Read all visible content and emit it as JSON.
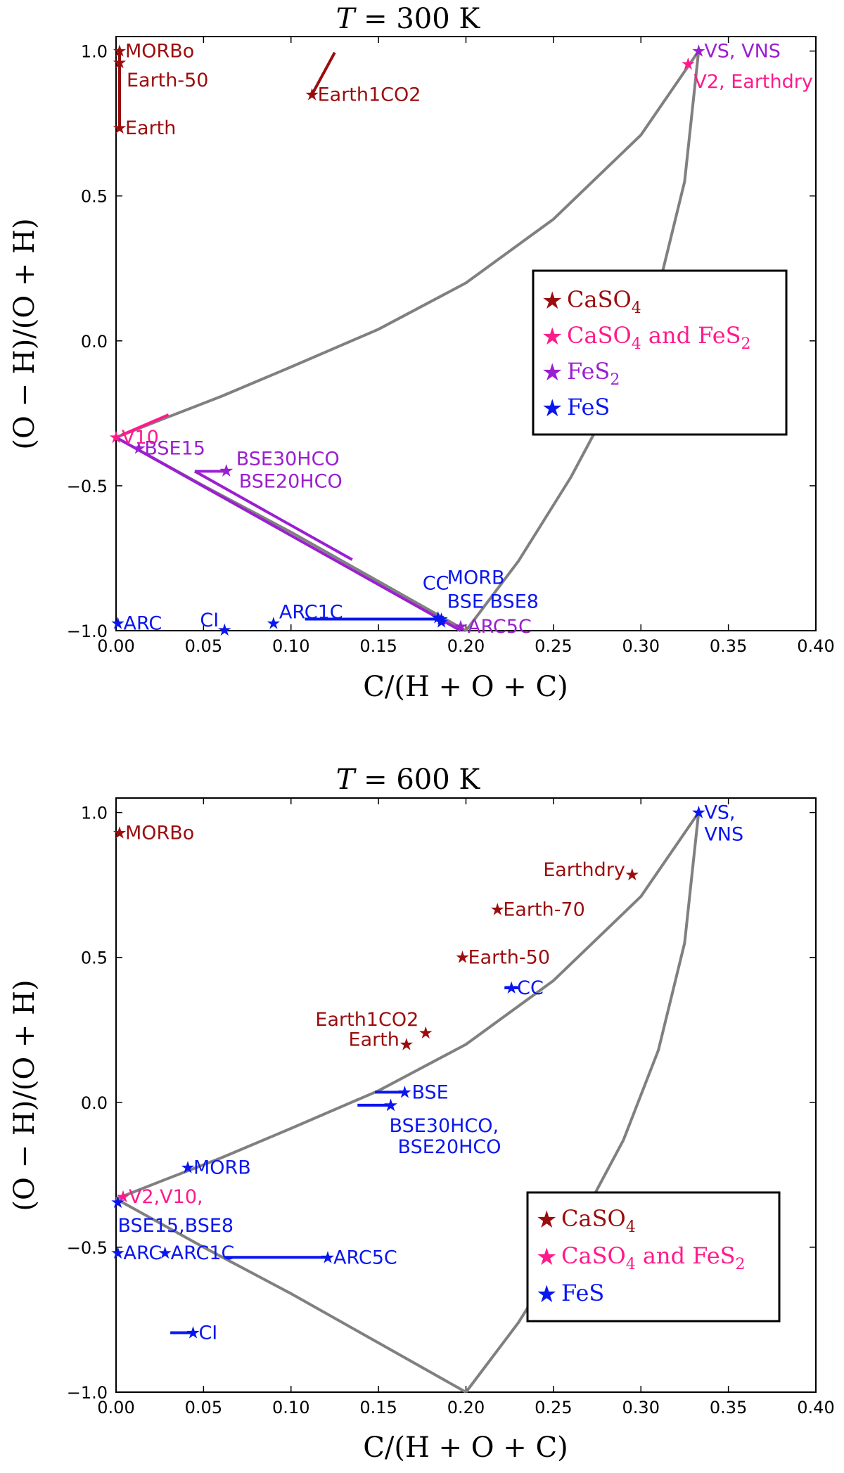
{
  "chart_data": [
    {
      "type": "scatter",
      "title": "T = 300 K",
      "title_var": "T",
      "title_rest": " = 300 K",
      "xlabel": "C/(H + O + C)",
      "ylabel": "(O − H)/(O + H)",
      "xlim": [
        0.0,
        0.4
      ],
      "ylim": [
        -1.0,
        1.05
      ],
      "xticks": [
        0.0,
        0.05,
        0.1,
        0.15,
        0.2,
        0.25,
        0.3,
        0.35,
        0.4
      ],
      "xtick_labels": [
        "0.00",
        "0.05",
        "0.10",
        "0.15",
        "0.20",
        "0.25",
        "0.30",
        "0.35",
        "0.40"
      ],
      "yticks": [
        -1.0,
        -0.5,
        0.0,
        0.5,
        1.0
      ],
      "ytick_labels": [
        "−1.0",
        "−0.5",
        "0.0",
        "0.5",
        "1.0"
      ],
      "legend": {
        "position": "right",
        "entries": [
          {
            "label": "CaSO",
            "sub": "4",
            "after": "",
            "sub2": "",
            "color": "#9b0d0d"
          },
          {
            "label": "CaSO",
            "sub": "4",
            "after": " and FeS",
            "sub2": "2",
            "color": "#ff1a8c"
          },
          {
            "label": "FeS",
            "sub": "2",
            "after": "",
            "sub2": "",
            "color": "#9b1fd0"
          },
          {
            "label": "FeS",
            "sub": "",
            "after": "",
            "sub2": "",
            "color": "#0a16f0"
          }
        ]
      },
      "curves": [
        {
          "name": "upper-boundary",
          "color": "#808080",
          "points": [
            [
              0.0,
              -0.333
            ],
            [
              0.03,
              -0.262
            ],
            [
              0.06,
              -0.192
            ],
            [
              0.1,
              -0.09
            ],
            [
              0.15,
              0.04
            ],
            [
              0.2,
              0.2
            ],
            [
              0.25,
              0.42
            ],
            [
              0.3,
              0.71
            ],
            [
              0.333,
              1.0
            ]
          ]
        },
        {
          "name": "lower-boundary",
          "color": "#808080",
          "points": [
            [
              0.0,
              -0.333
            ],
            [
              0.05,
              -0.5
            ],
            [
              0.1,
              -0.66
            ],
            [
              0.15,
              -0.83
            ],
            [
              0.2,
              -1.0
            ]
          ]
        },
        {
          "name": "right-boundary",
          "color": "#808080",
          "points": [
            [
              0.2,
              -1.0
            ],
            [
              0.23,
              -0.76
            ],
            [
              0.26,
              -0.47
            ],
            [
              0.29,
              -0.13
            ],
            [
              0.31,
              0.18
            ],
            [
              0.325,
              0.55
            ],
            [
              0.333,
              1.0
            ]
          ]
        }
      ],
      "segments": [
        {
          "color": "#9b0d0d",
          "points": [
            [
              0.002,
              0.735
            ],
            [
              0.002,
              1.0
            ]
          ]
        },
        {
          "color": "#9b0d0d",
          "points": [
            [
              0.112,
              0.85
            ],
            [
              0.125,
              0.995
            ]
          ]
        },
        {
          "color": "#9b1fd0",
          "points": [
            [
              0.0,
              -0.333
            ],
            [
              0.197,
              -1.0
            ]
          ]
        },
        {
          "color": "#9b1fd0",
          "points": [
            [
              0.045,
              -0.45
            ],
            [
              0.135,
              -0.755
            ]
          ]
        },
        {
          "color": "#9b1fd0",
          "points": [
            [
              0.045,
              -0.45
            ],
            [
              0.062,
              -0.45
            ]
          ]
        },
        {
          "color": "#ff1a8c",
          "points": [
            [
              0.003,
              -0.325
            ],
            [
              0.03,
              -0.255
            ]
          ]
        },
        {
          "color": "#0a16f0",
          "points": [
            [
              0.108,
              -0.96
            ],
            [
              0.185,
              -0.96
            ]
          ]
        }
      ],
      "points": [
        {
          "label": "MORBo",
          "x": 0.002,
          "y": 1.0,
          "color": "#9b0d0d"
        },
        {
          "label": "Earth-50",
          "x": 0.002,
          "y": 0.96,
          "color": "#9b0d0d"
        },
        {
          "label": "Earth",
          "x": 0.002,
          "y": 0.735,
          "color": "#9b0d0d"
        },
        {
          "label": "Earth1CO2",
          "x": 0.112,
          "y": 0.85,
          "color": "#9b0d0d"
        },
        {
          "label": "VS, VNS",
          "x": 0.333,
          "y": 1.0,
          "color": "#9b1fd0"
        },
        {
          "label": "V2, Earthdry",
          "x": 0.327,
          "y": 0.955,
          "color": "#ff1a8c"
        },
        {
          "label": "V10",
          "x": 0.0,
          "y": -0.333,
          "color": "#ff1a8c"
        },
        {
          "label": "BSE15",
          "x": 0.013,
          "y": -0.37,
          "color": "#9b1fd0"
        },
        {
          "label": "BSE30HCO",
          "x": 0.063,
          "y": -0.448,
          "color": "#9b1fd0"
        },
        {
          "label": "BSE20HCO",
          "x": 0.063,
          "y": -0.448,
          "color": "#9b1fd0"
        },
        {
          "label": "ARC5C",
          "x": 0.197,
          "y": -0.985,
          "color": "#9b1fd0"
        },
        {
          "label": "ARC",
          "x": 0.001,
          "y": -0.975,
          "color": "#0a16f0"
        },
        {
          "label": "CI",
          "x": 0.062,
          "y": -0.998,
          "color": "#0a16f0"
        },
        {
          "label": "ARC1C",
          "x": 0.09,
          "y": -0.975,
          "color": "#0a16f0"
        },
        {
          "label": "CC",
          "x": 0.184,
          "y": -0.955,
          "color": "#0a16f0"
        },
        {
          "label": "MORB",
          "x": 0.186,
          "y": -0.96,
          "color": "#0a16f0"
        },
        {
          "label": "BSE BSE8",
          "x": 0.186,
          "y": -0.97,
          "color": "#0a16f0"
        }
      ]
    },
    {
      "type": "scatter",
      "title": "T = 600 K",
      "title_var": "T",
      "title_rest": " = 600 K",
      "xlabel": "C/(H + O + C)",
      "ylabel": "(O − H)/(O + H)",
      "xlim": [
        0.0,
        0.4
      ],
      "ylim": [
        -1.0,
        1.05
      ],
      "xticks": [
        0.0,
        0.05,
        0.1,
        0.15,
        0.2,
        0.25,
        0.3,
        0.35,
        0.4
      ],
      "xtick_labels": [
        "0.00",
        "0.05",
        "0.10",
        "0.15",
        "0.20",
        "0.25",
        "0.30",
        "0.35",
        "0.40"
      ],
      "yticks": [
        -1.0,
        -0.5,
        0.0,
        0.5,
        1.0
      ],
      "ytick_labels": [
        "−1.0",
        "−0.5",
        "0.0",
        "0.5",
        "1.0"
      ],
      "legend": {
        "position": "lower right",
        "entries": [
          {
            "label": "CaSO",
            "sub": "4",
            "after": "",
            "sub2": "",
            "color": "#9b0d0d"
          },
          {
            "label": "CaSO",
            "sub": "4",
            "after": " and FeS",
            "sub2": "2",
            "color": "#ff1a8c"
          },
          {
            "label": "FeS",
            "sub": "",
            "after": "",
            "sub2": "",
            "color": "#0a16f0"
          }
        ]
      },
      "curves": [
        {
          "name": "upper-boundary",
          "color": "#808080",
          "points": [
            [
              0.0,
              -0.333
            ],
            [
              0.03,
              -0.262
            ],
            [
              0.06,
              -0.192
            ],
            [
              0.1,
              -0.09
            ],
            [
              0.15,
              0.04
            ],
            [
              0.2,
              0.2
            ],
            [
              0.25,
              0.42
            ],
            [
              0.3,
              0.71
            ],
            [
              0.333,
              1.0
            ]
          ]
        },
        {
          "name": "lower-boundary",
          "color": "#808080",
          "points": [
            [
              0.0,
              -0.333
            ],
            [
              0.05,
              -0.5
            ],
            [
              0.1,
              -0.66
            ],
            [
              0.15,
              -0.83
            ],
            [
              0.2,
              -1.0
            ]
          ]
        },
        {
          "name": "right-boundary",
          "color": "#808080",
          "points": [
            [
              0.2,
              -1.0
            ],
            [
              0.23,
              -0.76
            ],
            [
              0.26,
              -0.47
            ],
            [
              0.29,
              -0.13
            ],
            [
              0.31,
              0.18
            ],
            [
              0.325,
              0.55
            ],
            [
              0.333,
              1.0
            ]
          ]
        }
      ],
      "segments": [
        {
          "color": "#0a16f0",
          "points": [
            [
              0.222,
              0.395
            ],
            [
              0.23,
              0.395
            ]
          ]
        },
        {
          "color": "#0a16f0",
          "points": [
            [
              0.148,
              0.035
            ],
            [
              0.165,
              0.035
            ]
          ]
        },
        {
          "color": "#0a16f0",
          "points": [
            [
              0.138,
              -0.01
            ],
            [
              0.157,
              -0.01
            ]
          ]
        },
        {
          "color": "#0a16f0",
          "points": [
            [
              0.062,
              -0.535
            ],
            [
              0.12,
              -0.535
            ]
          ]
        },
        {
          "color": "#0a16f0",
          "points": [
            [
              0.031,
              -0.795
            ],
            [
              0.044,
              -0.795
            ]
          ]
        }
      ],
      "points": [
        {
          "label": "MORBo",
          "x": 0.002,
          "y": 0.93,
          "color": "#9b0d0d"
        },
        {
          "label": "Earthdry",
          "x": 0.295,
          "y": 0.785,
          "color": "#9b0d0d"
        },
        {
          "label": "Earth-70",
          "x": 0.218,
          "y": 0.665,
          "color": "#9b0d0d"
        },
        {
          "label": "Earth-50",
          "x": 0.198,
          "y": 0.5,
          "color": "#9b0d0d"
        },
        {
          "label": "Earth1CO2",
          "x": 0.177,
          "y": 0.24,
          "color": "#9b0d0d"
        },
        {
          "label": "Earth",
          "x": 0.166,
          "y": 0.2,
          "color": "#9b0d0d"
        },
        {
          "label": "VS,",
          "x": 0.333,
          "y": 1.0,
          "color": "#0a16f0"
        },
        {
          "label": "VNS",
          "x": 0.333,
          "y": 1.0,
          "color": "#0a16f0"
        },
        {
          "label": "CC",
          "x": 0.226,
          "y": 0.395,
          "color": "#0a16f0"
        },
        {
          "label": "BSE",
          "x": 0.165,
          "y": 0.035,
          "color": "#0a16f0"
        },
        {
          "label": "BSE30HCO,",
          "x": 0.157,
          "y": -0.01,
          "color": "#0a16f0"
        },
        {
          "label": "BSE20HCO",
          "x": 0.157,
          "y": -0.01,
          "color": "#0a16f0"
        },
        {
          "label": "MORB",
          "x": 0.041,
          "y": -0.225,
          "color": "#0a16f0"
        },
        {
          "label": "V2,V10,",
          "x": 0.004,
          "y": -0.325,
          "color": "#ff1a8c"
        },
        {
          "label": "BSE15,BSE8",
          "x": 0.001,
          "y": -0.345,
          "color": "#0a16f0"
        },
        {
          "label": "ARC",
          "x": 0.001,
          "y": -0.52,
          "color": "#0a16f0"
        },
        {
          "label": "ARC1C",
          "x": 0.028,
          "y": -0.52,
          "color": "#0a16f0"
        },
        {
          "label": "ARC5C",
          "x": 0.121,
          "y": -0.535,
          "color": "#0a16f0"
        },
        {
          "label": "CI",
          "x": 0.044,
          "y": -0.795,
          "color": "#0a16f0"
        }
      ]
    }
  ]
}
